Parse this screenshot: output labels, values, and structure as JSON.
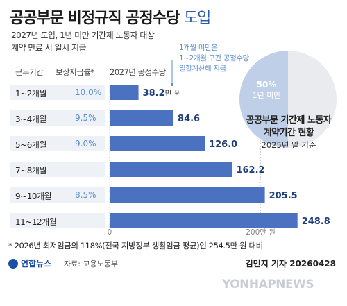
{
  "header": {
    "title_main": "공공부문 비정규직 공정수당",
    "title_suffix": "도입",
    "subtitle_line1": "2027년 도입, 1년 미만 기간제 노동자 대상",
    "subtitle_line2": "계약 만료 시 일시 지급"
  },
  "note_top": [
    "1개월 미만은",
    "1~2개월 구간 공정수당",
    "일할계산해 지급"
  ],
  "columns": {
    "period": "근무기간",
    "rate": "보상지급률*",
    "amount": "2027년 공정수당"
  },
  "rates": [
    "10.0%",
    "9.5%",
    "9.0%",
    "",
    "8.5%",
    ""
  ],
  "chart_data": {
    "type": "bar",
    "orientation": "horizontal",
    "categories": [
      "1~2개월",
      "3~4개월",
      "5~6개월",
      "7~8개월",
      "9~10개월",
      "11~12개월"
    ],
    "values": [
      38.2,
      84.6,
      126.0,
      162.2,
      205.5,
      248.8
    ],
    "value_labels": [
      "38.2",
      "84.6",
      "126.0",
      "162.2",
      "205.5",
      "248.8"
    ],
    "first_label_unit": "만 원",
    "axis_ticks": [
      {
        "value": 0,
        "label": "0"
      },
      {
        "value": 200,
        "label": "200만 원"
      }
    ],
    "xlim": [
      0,
      250
    ],
    "bar_color": "#4a72c0"
  },
  "pie_chart": {
    "type": "pie",
    "percent_label": "50%",
    "category_label": "1년 미만",
    "value": 50,
    "colors": {
      "highlight": "#bfcfe8",
      "rest": "#e9ebee"
    },
    "caption_line1": "공공부문 기간제 노동자",
    "caption_line2": "계약기간 현황",
    "date": "2025년 말 기준"
  },
  "footnote": "* 2026년 최저임금의 118%(전국 지방정부 생활임금 평균)인 254.5만 원 대비",
  "footer": {
    "logo": "연합뉴스",
    "source": "자료: 고용노동부",
    "credit": "김민지 기자 20260428"
  },
  "watermark": "YONHAPNEWS"
}
